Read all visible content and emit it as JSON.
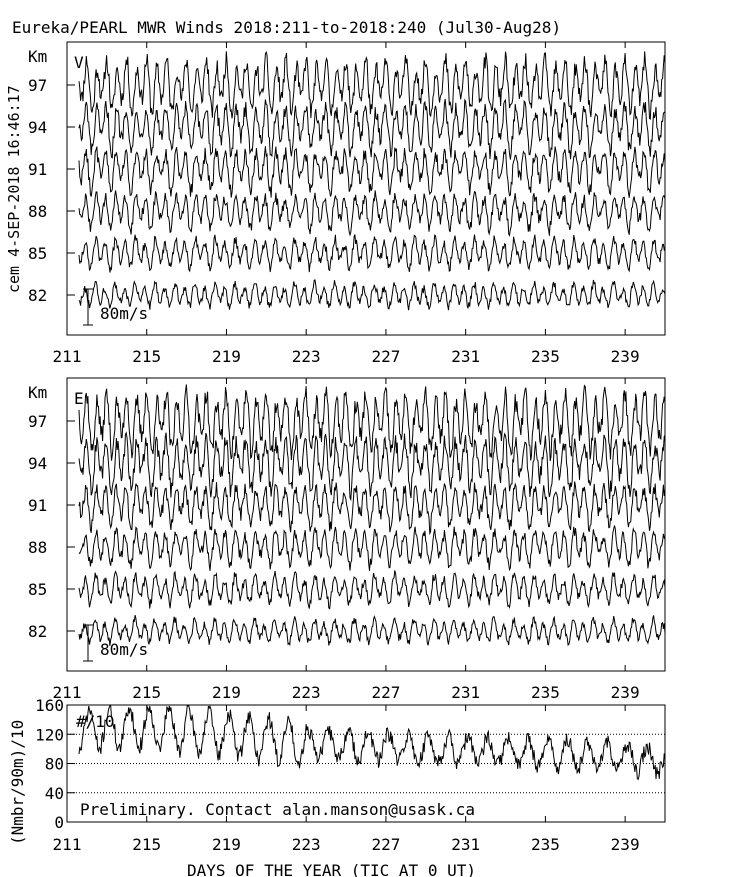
{
  "title": "Eureka/PEARL MWR Winds 2018:211-to-2018:240 (Jul30-Aug28)",
  "side_stamp": "cem 4-SEP-2018 16:46:17",
  "note": "Preliminary. Contact alan.manson@usask.ca",
  "xlabel": "DAYS OF THE YEAR (TIC AT 0 UT)",
  "colors": {
    "line": "#000000",
    "background": "#ffffff"
  },
  "chart_data": [
    {
      "type": "line",
      "panel": "V",
      "component_label": "V",
      "units_label": "Km",
      "scale_label": "80m/s",
      "xlim": [
        211,
        241
      ],
      "x_tick_labels": [
        "211",
        "215",
        "219",
        "223",
        "227",
        "231",
        "235",
        "239"
      ],
      "y_tick_labels": [
        "97",
        "94",
        "91",
        "88",
        "85",
        "82"
      ],
      "series": [
        {
          "height_km": 97,
          "amplitude_ms": 45,
          "period_days": 0.5
        },
        {
          "height_km": 94,
          "amplitude_ms": 40,
          "period_days": 0.5
        },
        {
          "height_km": 91,
          "amplitude_ms": 35,
          "period_days": 0.5
        },
        {
          "height_km": 88,
          "amplitude_ms": 30,
          "period_days": 0.5
        },
        {
          "height_km": 85,
          "amplitude_ms": 25,
          "period_days": 0.5
        },
        {
          "height_km": 82,
          "amplitude_ms": 20,
          "period_days": 0.5
        }
      ]
    },
    {
      "type": "line",
      "panel": "E",
      "component_label": "E",
      "units_label": "Km",
      "scale_label": "80m/s",
      "xlim": [
        211,
        241
      ],
      "x_tick_labels": [
        "211",
        "215",
        "219",
        "223",
        "227",
        "231",
        "235",
        "239"
      ],
      "y_tick_labels": [
        "97",
        "94",
        "91",
        "88",
        "85",
        "82"
      ],
      "series": [
        {
          "height_km": 97,
          "amplitude_ms": 50,
          "period_days": 0.5
        },
        {
          "height_km": 94,
          "amplitude_ms": 45,
          "period_days": 0.5
        },
        {
          "height_km": 91,
          "amplitude_ms": 35,
          "period_days": 0.5
        },
        {
          "height_km": 88,
          "amplitude_ms": 30,
          "period_days": 0.5
        },
        {
          "height_km": 85,
          "amplitude_ms": 25,
          "period_days": 0.5
        },
        {
          "height_km": 82,
          "amplitude_ms": 20,
          "period_days": 0.5
        }
      ]
    },
    {
      "type": "line",
      "panel": "count",
      "series_label": "#/10",
      "ylabel": "(Nmbr/90m)/10",
      "ylim": [
        0,
        160
      ],
      "y_ticks": [
        0,
        40,
        80,
        120,
        160
      ],
      "y_tick_labels": [
        "0",
        "40",
        "80",
        "120",
        "160"
      ],
      "x_tick_labels": [
        "211",
        "215",
        "219",
        "223",
        "227",
        "231",
        "235",
        "239"
      ],
      "xlim": [
        211,
        241
      ],
      "gridlines": [
        40,
        80,
        120
      ],
      "trend": [
        {
          "day": 211,
          "value": 125
        },
        {
          "day": 215,
          "value": 130
        },
        {
          "day": 219,
          "value": 120
        },
        {
          "day": 223,
          "value": 108
        },
        {
          "day": 227,
          "value": 102
        },
        {
          "day": 231,
          "value": 98
        },
        {
          "day": 235,
          "value": 95
        },
        {
          "day": 239,
          "value": 88
        },
        {
          "day": 241,
          "value": 82
        }
      ]
    }
  ]
}
